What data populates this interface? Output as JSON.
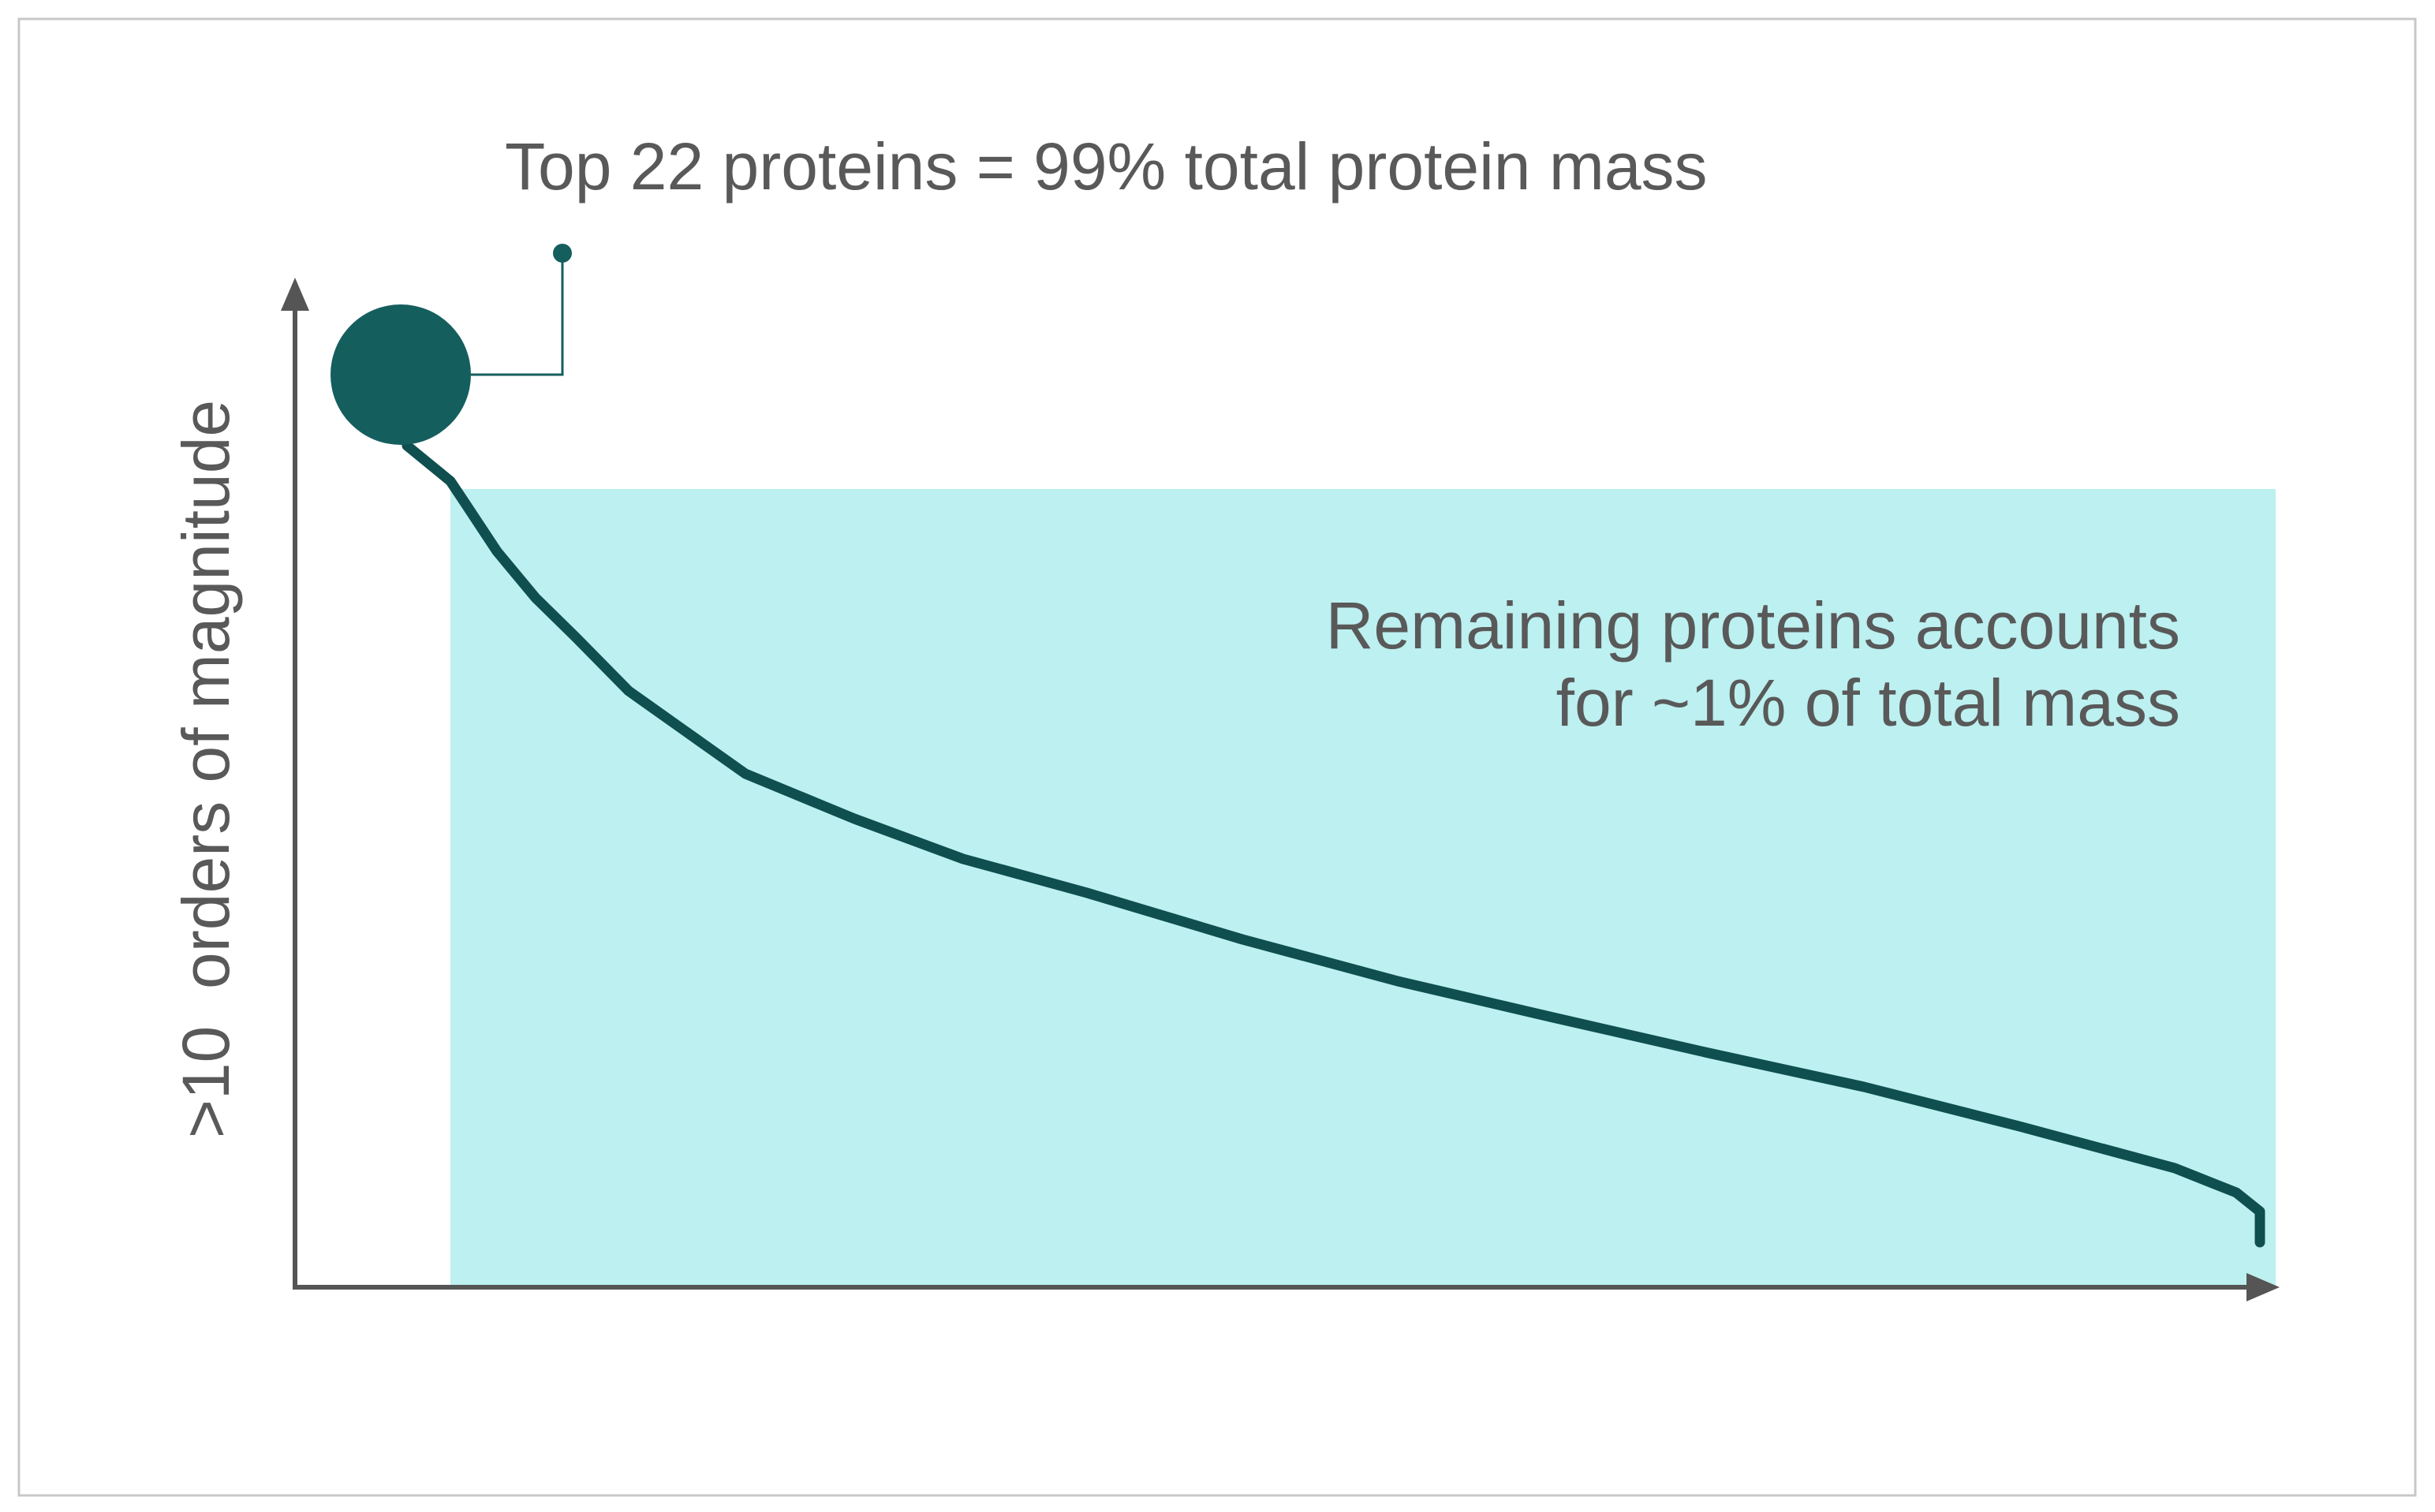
{
  "top_annotation": {
    "text": "Top 22 proteins = 99% total protein mass"
  },
  "remaining_annotation": {
    "lines": [
      "Remaining proteins accounts",
      "for ~1% of total mass"
    ]
  },
  "y_axis": {
    "label": ">10  orders of magnitude"
  }
}
